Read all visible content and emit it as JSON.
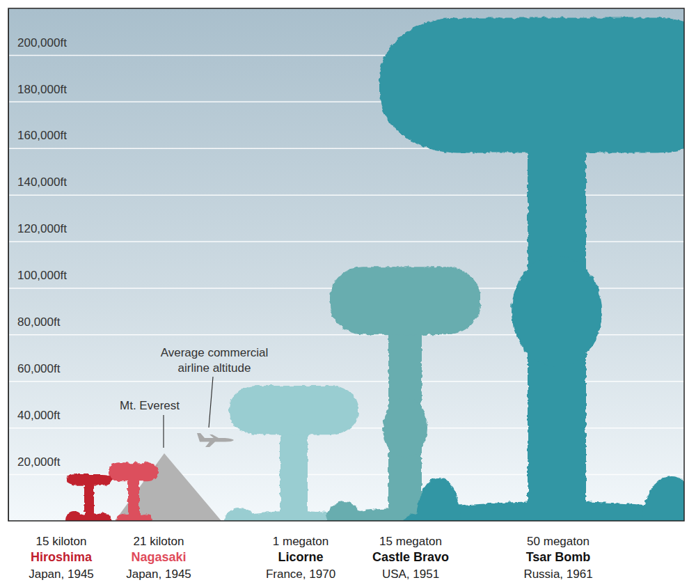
{
  "chart_data": {
    "type": "mushroom",
    "categories": [
      "Hiroshima",
      "Nagasaki",
      "Licorne",
      "Castle Bravo",
      "Tsar Bomb"
    ],
    "yields": [
      "15 kiloton",
      "21 kiloton",
      "1 megaton",
      "15 megaton",
      "50 megaton"
    ],
    "locations": [
      "Japan, 1945",
      "Japan, 1945",
      "France, 1970",
      "USA, 1951",
      "Russia, 1961"
    ],
    "values": [
      20000,
      25000,
      58000,
      109000,
      216000
    ],
    "cap_bottom": [
      15000,
      17000,
      37000,
      80000,
      158000
    ],
    "colors": [
      "#c1202e",
      "#dc4f5d",
      "#99cdd1",
      "#68adaf",
      "#3396a4"
    ],
    "ylim": [
      0,
      220000
    ],
    "yticks": [
      {
        "value": 20000,
        "label": "20,000ft"
      },
      {
        "value": 40000,
        "label": "40,000ft"
      },
      {
        "value": 60000,
        "label": "60,000ft"
      },
      {
        "value": 80000,
        "label": "80,000ft"
      },
      {
        "value": 100000,
        "label": "100,000ft"
      },
      {
        "value": 120000,
        "label": "120,000ft"
      },
      {
        "value": 140000,
        "label": "140,000ft"
      },
      {
        "value": 160000,
        "label": "160,000ft"
      },
      {
        "value": 180000,
        "label": "180,000ft"
      },
      {
        "value": 200000,
        "label": "200,000ft"
      }
    ],
    "grid": true,
    "tick_labels": "y",
    "annotations": [
      {
        "text": [
          "Mt. Everest"
        ],
        "value": 29000,
        "marker": "triangle"
      },
      {
        "text": [
          "Average commercial",
          "airline altitude"
        ],
        "value": 35000,
        "marker": "plane"
      }
    ]
  }
}
